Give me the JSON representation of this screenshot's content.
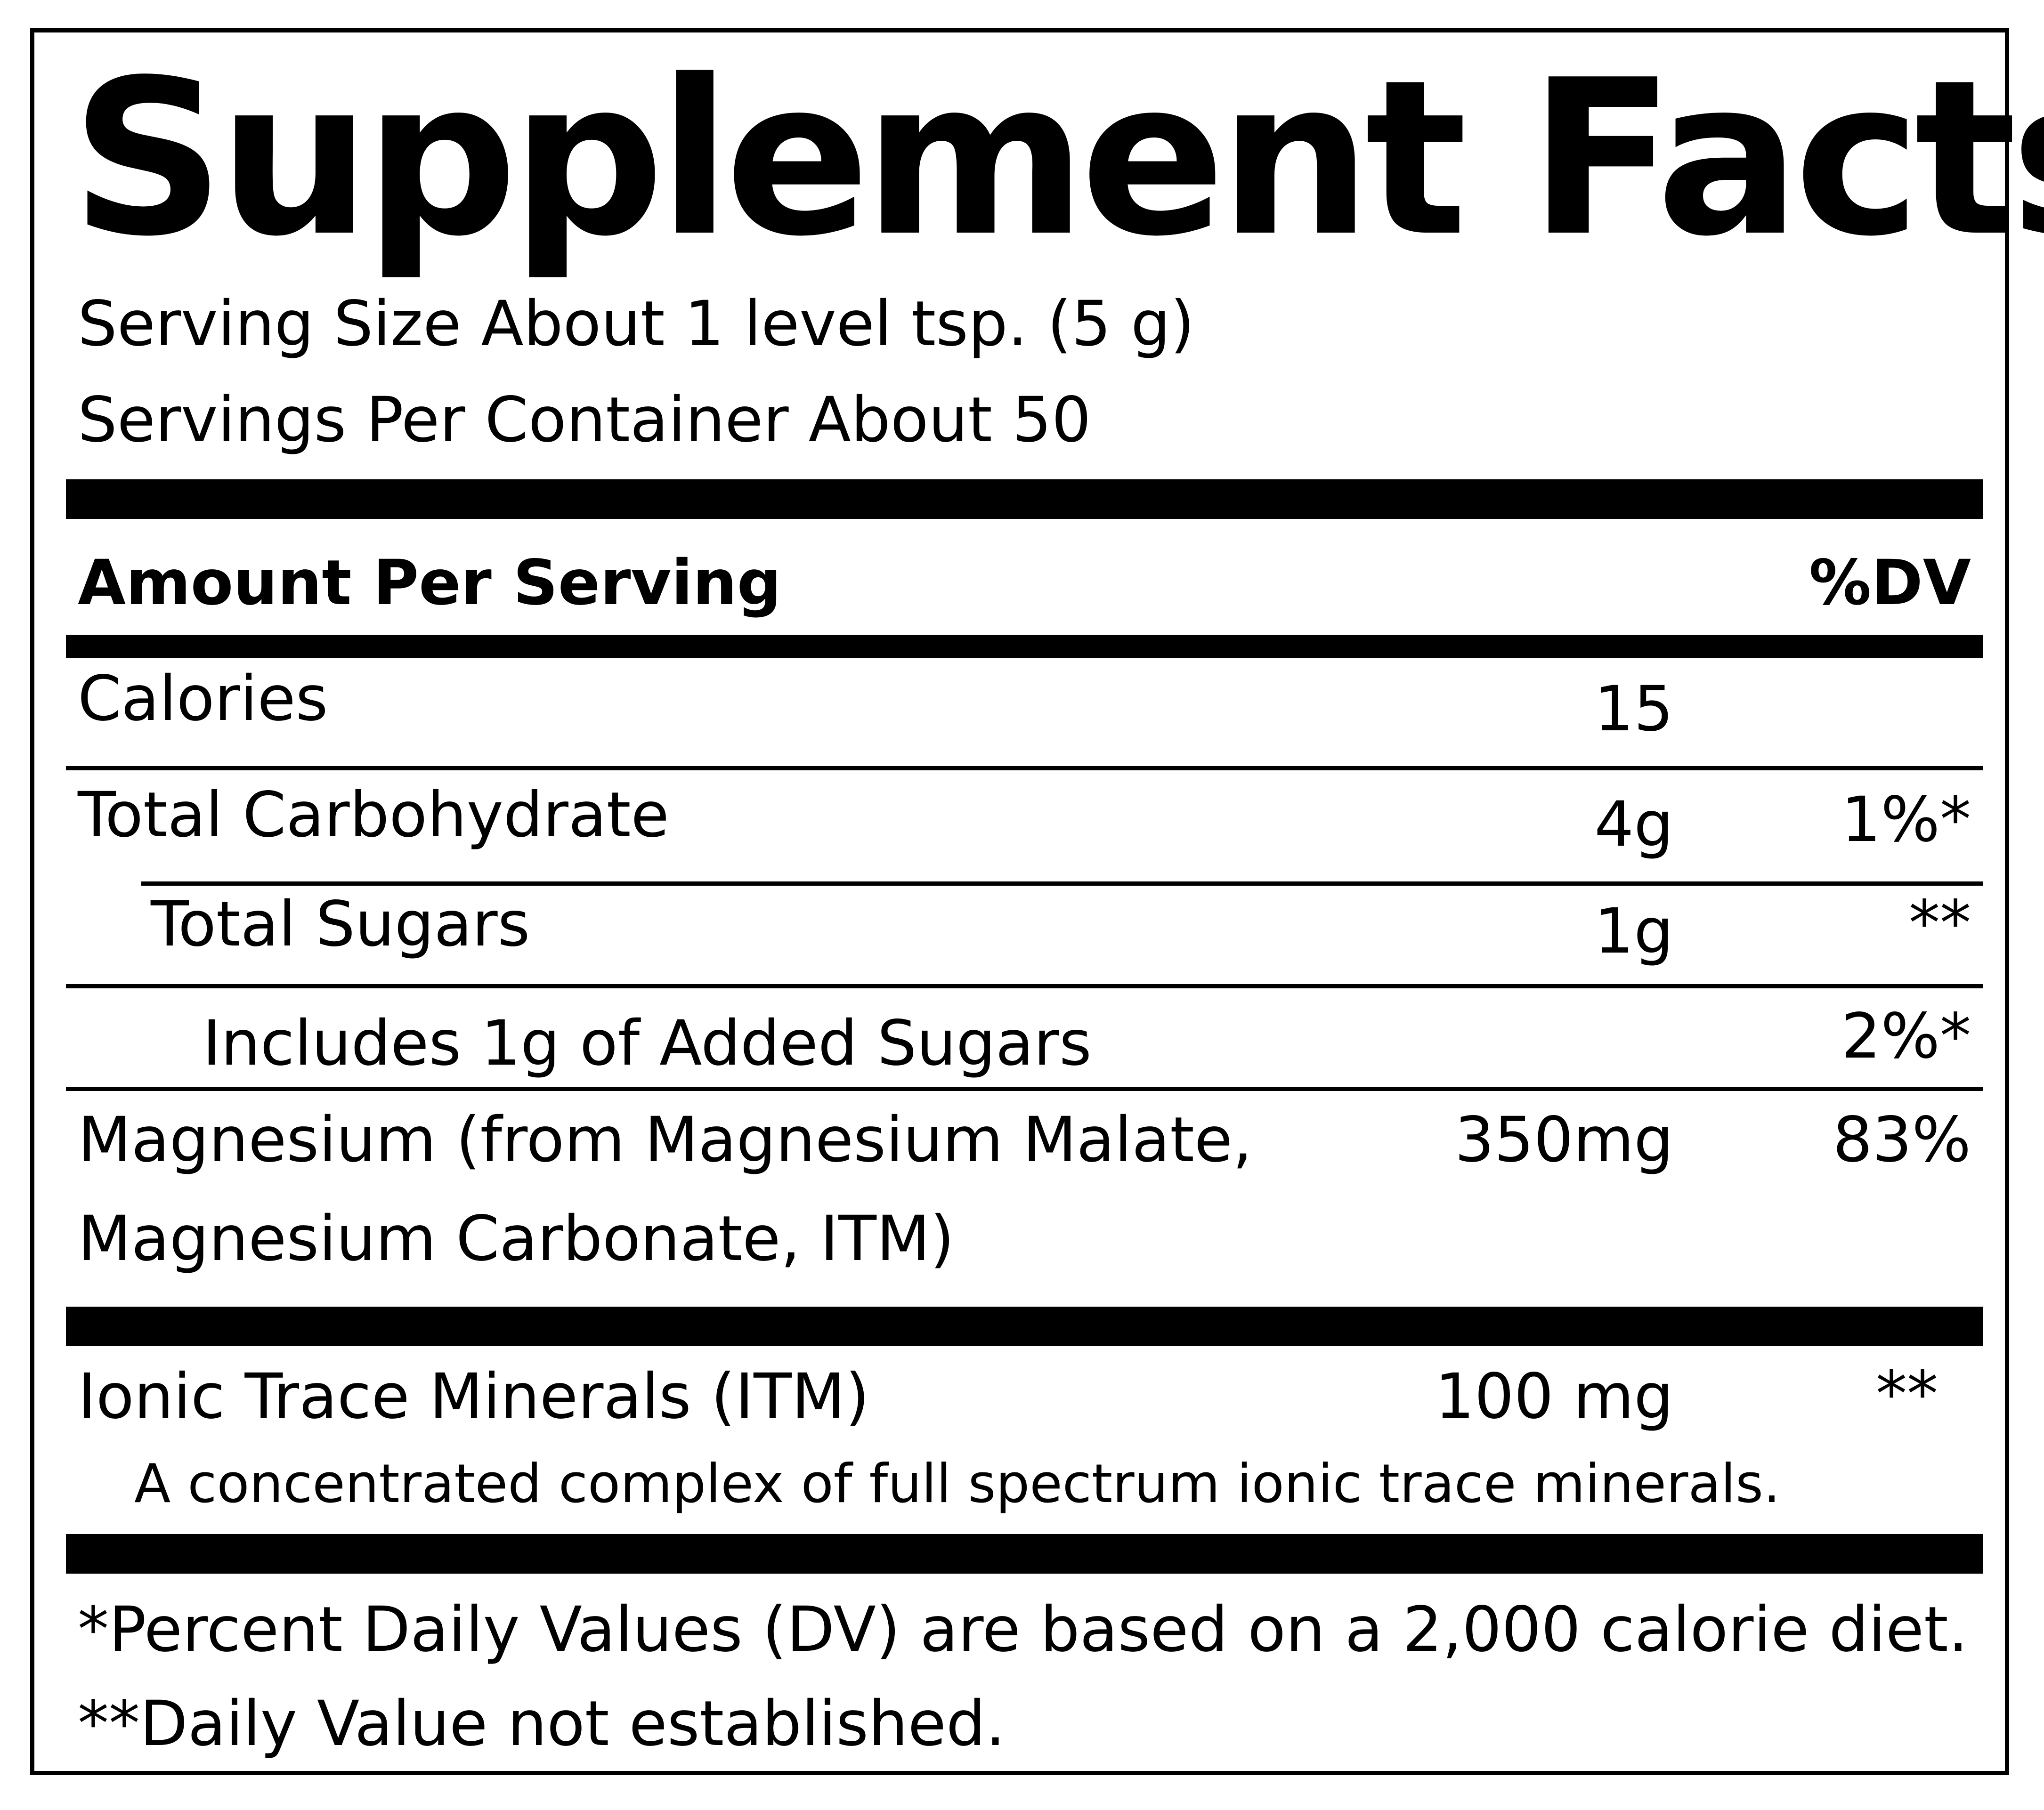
{
  "title": "Supplement Facts",
  "serving_size": "Serving Size About 1 level tsp. (5 g)",
  "servings_per_container": "Servings Per Container About 50",
  "header": {
    "amount_per_serving": "Amount Per Serving",
    "dv": "%DV"
  },
  "rows": [
    {
      "name": "Calories",
      "amount": "15",
      "dv": ""
    },
    {
      "name": "Total Carbohydrate",
      "amount": "4g",
      "dv": "1%*"
    },
    {
      "name": "Total Sugars",
      "amount": "1g",
      "dv": "**"
    },
    {
      "name": "Includes 1g of Added Sugars",
      "amount": "",
      "dv": "2%*"
    },
    {
      "name_line1": "Magnesium (from  Magnesium Malate,",
      "name_line2": "Magnesium Carbonate, ITM)",
      "amount": "350mg",
      "dv": "83%"
    },
    {
      "name": "Ionic Trace Minerals (ITM)",
      "amount": "100 mg",
      "dv": "**"
    }
  ],
  "itm_note": "A concentrated complex of full spectrum ionic trace minerals.",
  "footnotes": [
    "*Percent Daily Values (DV) are based on a 2,000 calorie diet.",
    "**Daily Value not established."
  ]
}
